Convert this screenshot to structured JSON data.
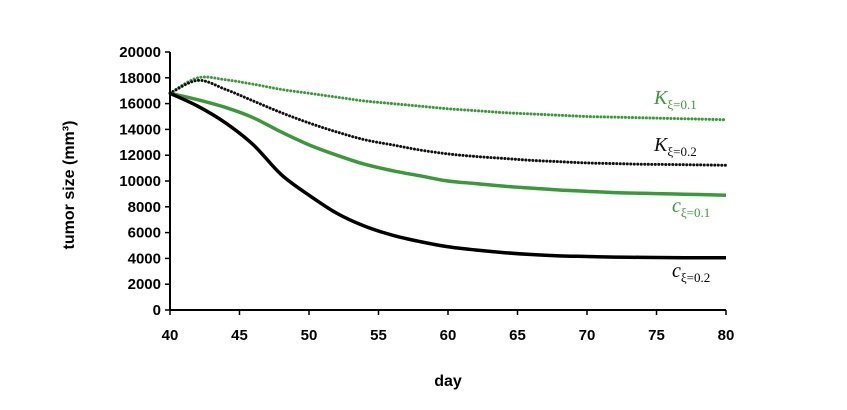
{
  "chart_data": {
    "type": "line",
    "xlabel": "day",
    "ylabel": "tumor size (mm³)",
    "xlim": [
      40,
      80
    ],
    "ylim": [
      0,
      20000
    ],
    "xticks": [
      "40",
      "45",
      "50",
      "55",
      "60",
      "65",
      "70",
      "75",
      "80"
    ],
    "yticks": [
      "0",
      "2000",
      "4000",
      "6000",
      "8000",
      "10000",
      "12000",
      "14000",
      "16000",
      "18000",
      "20000"
    ],
    "grid": false,
    "legend": "inline labels at right end of lines",
    "x": [
      40,
      42,
      44,
      46,
      48,
      50,
      52,
      54,
      56,
      58,
      60,
      62,
      64,
      66,
      68,
      70,
      72,
      74,
      76,
      78,
      80
    ],
    "series": [
      {
        "name": "K",
        "subscript": "ξ=0.1",
        "color": "#3a9a3a",
        "style": "dotted",
        "values": [
          16800,
          18000,
          17850,
          17500,
          17100,
          16800,
          16500,
          16200,
          16000,
          15800,
          15600,
          15450,
          15300,
          15200,
          15100,
          15000,
          14950,
          14900,
          14850,
          14800,
          14750
        ]
      },
      {
        "name": "K",
        "subscript": "ξ=0.2",
        "color": "#111111",
        "style": "dotted",
        "values": [
          16800,
          17800,
          17100,
          16200,
          15300,
          14500,
          13800,
          13200,
          12800,
          12400,
          12100,
          11900,
          11750,
          11600,
          11500,
          11400,
          11350,
          11300,
          11280,
          11250,
          11220
        ]
      },
      {
        "name": "c",
        "subscript": "ξ=0.1",
        "color": "#3a9a3a",
        "style": "solid",
        "values": [
          16800,
          16300,
          15700,
          14900,
          13800,
          12800,
          12000,
          11300,
          10800,
          10400,
          10000,
          9800,
          9600,
          9450,
          9300,
          9200,
          9100,
          9050,
          9000,
          8950,
          8900
        ]
      },
      {
        "name": "c",
        "subscript": "ξ=0.2",
        "color": "#000000",
        "style": "solid",
        "values": [
          16800,
          15800,
          14500,
          12800,
          10500,
          8900,
          7500,
          6500,
          5800,
          5300,
          4900,
          4650,
          4450,
          4300,
          4200,
          4150,
          4100,
          4080,
          4060,
          4050,
          4050
        ]
      }
    ]
  }
}
